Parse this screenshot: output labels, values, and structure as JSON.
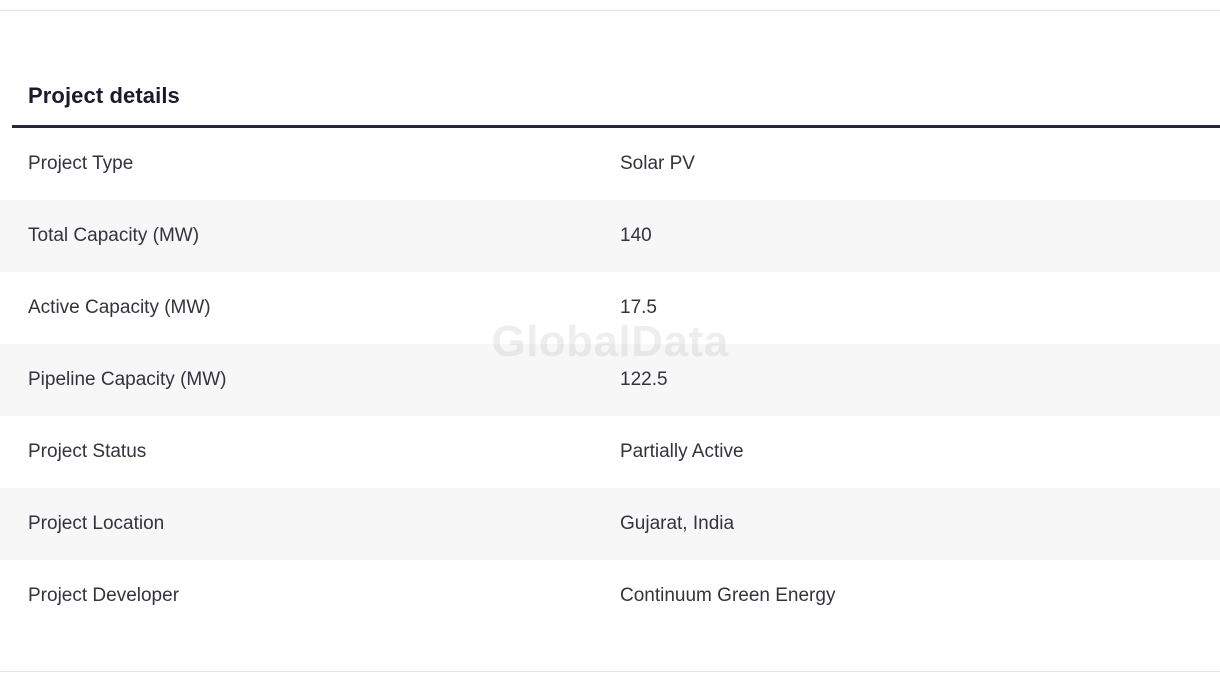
{
  "section": {
    "title": "Project details"
  },
  "watermark": {
    "text": "GlobalData"
  },
  "table": {
    "rows": [
      {
        "label": "Project Type",
        "value": "Solar PV"
      },
      {
        "label": "Total Capacity (MW)",
        "value": "140"
      },
      {
        "label": "Active Capacity (MW)",
        "value": "17.5"
      },
      {
        "label": "Pipeline Capacity (MW)",
        "value": "122.5"
      },
      {
        "label": "Project Status",
        "value": "Partially Active"
      },
      {
        "label": "Project Location",
        "value": "Gujarat, India"
      },
      {
        "label": "Project Developer",
        "value": "Continuum Green Energy"
      }
    ]
  },
  "colors": {
    "heading_text": "#1b1b2d",
    "body_text": "#33333e",
    "thick_rule": "#27273a",
    "alt_row_bg": "#f7f7f8",
    "divider": "#e4e4e6"
  }
}
